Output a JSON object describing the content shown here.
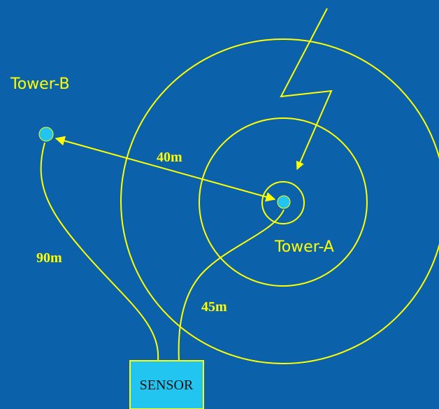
{
  "nodes": [
    {
      "label": "Tower-B"
    },
    {
      "label": "Tower-A"
    },
    {
      "label": "SENSOR"
    }
  ],
  "edges": [
    {
      "label": "40m"
    },
    {
      "label": "90m"
    },
    {
      "label": "45m"
    }
  ]
}
